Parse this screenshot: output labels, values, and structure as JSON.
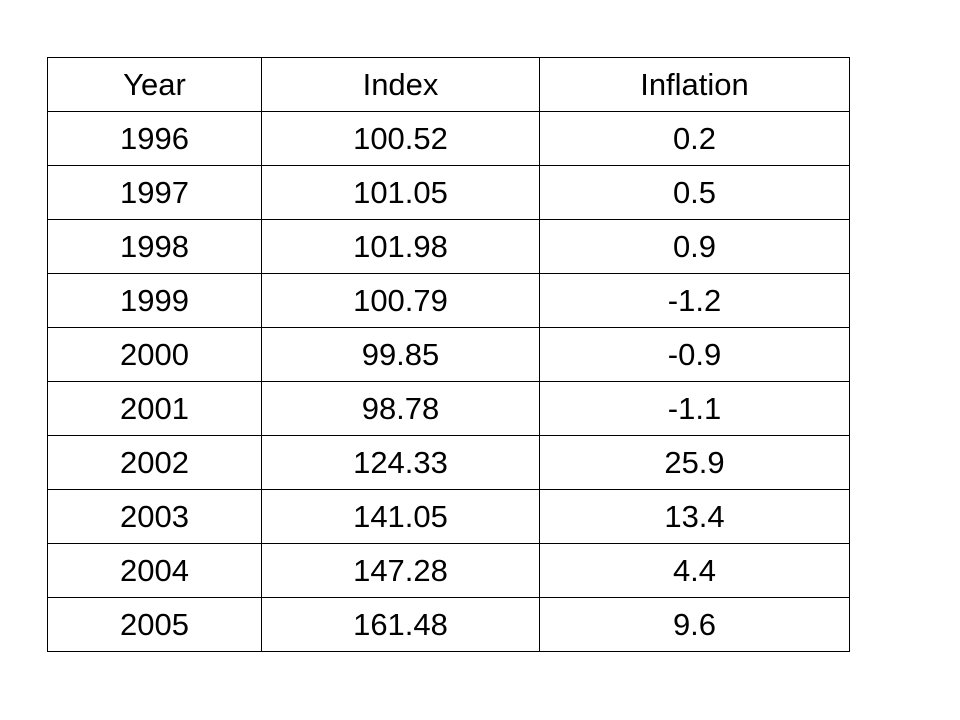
{
  "table": {
    "headers": [
      "Year",
      "Index",
      "Inflation"
    ],
    "rows": [
      [
        "1996",
        "100.52",
        "0.2"
      ],
      [
        "1997",
        "101.05",
        "0.5"
      ],
      [
        "1998",
        "101.98",
        "0.9"
      ],
      [
        "1999",
        "100.79",
        "-1.2"
      ],
      [
        "2000",
        "99.85",
        "-0.9"
      ],
      [
        "2001",
        "98.78",
        "-1.1"
      ],
      [
        "2002",
        "124.33",
        "25.9"
      ],
      [
        "2003",
        "141.05",
        "13.4"
      ],
      [
        "2004",
        "147.28",
        "4.4"
      ],
      [
        "2005",
        "161.48",
        "9.6"
      ]
    ]
  }
}
